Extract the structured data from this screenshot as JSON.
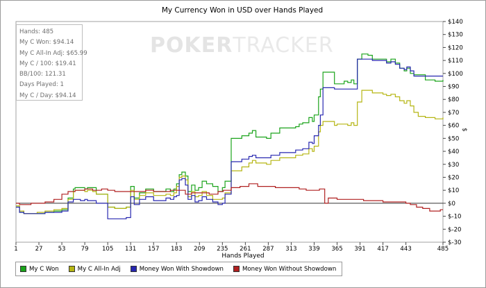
{
  "chart_data": {
    "type": "line",
    "title": "My Currency Won in USD over Hands Played",
    "xlabel": "Hands Played",
    "ylabel": "$",
    "xlim": [
      1,
      485
    ],
    "ylim": [
      -30,
      140
    ],
    "x_ticks": [
      "1",
      "27",
      "53",
      "79",
      "105",
      "131",
      "157",
      "183",
      "209",
      "235",
      "261",
      "287",
      "313",
      "339",
      "365",
      "391",
      "417",
      "443",
      "485"
    ],
    "y_ticks": [
      {
        "value": -30,
        "label": "$-30"
      },
      {
        "value": -20,
        "label": "$-20"
      },
      {
        "value": -10,
        "label": "$-10"
      },
      {
        "value": 0,
        "label": "$0"
      },
      {
        "value": 10,
        "label": "$10"
      },
      {
        "value": 20,
        "label": "$20"
      },
      {
        "value": 30,
        "label": "$30"
      },
      {
        "value": 40,
        "label": "$40"
      },
      {
        "value": 50,
        "label": "$50"
      },
      {
        "value": 60,
        "label": "$60"
      },
      {
        "value": 70,
        "label": "$70"
      },
      {
        "value": 80,
        "label": "$80"
      },
      {
        "value": 90,
        "label": "$90"
      },
      {
        "value": 100,
        "label": "$100"
      },
      {
        "value": 110,
        "label": "$110"
      },
      {
        "value": 120,
        "label": "$120"
      },
      {
        "value": 130,
        "label": "$130"
      },
      {
        "value": 140,
        "label": "$140"
      }
    ],
    "legend_position": "bottom",
    "series": [
      {
        "name": "My C Won",
        "color": "#1aa31a",
        "x": [
          1,
          5,
          10,
          18,
          25,
          34,
          44,
          53,
          55,
          60,
          66,
          68,
          74,
          79,
          82,
          88,
          92,
          98,
          105,
          110,
          113,
          120,
          126,
          131,
          135,
          141,
          148,
          157,
          165,
          171,
          176,
          180,
          183,
          186,
          189,
          193,
          196,
          200,
          204,
          208,
          212,
          217,
          224,
          230,
          235,
          238,
          245,
          252,
          257,
          262,
          265,
          269,
          273,
          280,
          285,
          290,
          295,
          300,
          305,
          313,
          318,
          322,
          326,
          330,
          333,
          337,
          339,
          342,
          344,
          346,
          349,
          353,
          358,
          362,
          365,
          369,
          373,
          377,
          381,
          384,
          388,
          393,
          400,
          405,
          411,
          417,
          421,
          426,
          431,
          436,
          441,
          444,
          448,
          452,
          457,
          461,
          465,
          470,
          476,
          482,
          485
        ],
        "y": [
          -2,
          -7,
          -8,
          -8,
          -8,
          -7,
          -6,
          -5,
          -5,
          4,
          11,
          12,
          12,
          11,
          12,
          12,
          7,
          7,
          -3,
          -3,
          -4,
          -4,
          -3,
          13,
          4,
          8,
          11,
          9,
          9,
          11,
          9,
          11,
          15,
          22,
          24,
          21,
          9,
          14,
          10,
          12,
          17,
          15,
          13,
          9,
          12,
          17,
          50,
          50,
          52,
          52,
          54,
          56,
          51,
          51,
          50,
          54,
          54,
          58,
          58,
          58,
          59,
          61,
          62,
          62,
          66,
          63,
          68,
          68,
          82,
          88,
          101,
          101,
          101,
          92,
          92,
          92,
          94,
          93,
          95,
          92,
          111,
          115,
          114,
          111,
          111,
          111,
          109,
          111,
          108,
          104,
          102,
          104,
          100,
          99,
          99,
          99,
          95,
          95,
          94,
          94,
          95
        ]
      },
      {
        "name": "My C All-In Adj",
        "color": "#b5b512",
        "x": [
          1,
          5,
          10,
          18,
          25,
          34,
          44,
          53,
          55,
          60,
          66,
          68,
          74,
          79,
          82,
          88,
          92,
          98,
          105,
          110,
          113,
          120,
          126,
          131,
          135,
          141,
          148,
          157,
          165,
          171,
          176,
          180,
          183,
          186,
          189,
          193,
          196,
          200,
          204,
          208,
          212,
          217,
          224,
          230,
          235,
          238,
          245,
          252,
          257,
          262,
          265,
          269,
          273,
          280,
          285,
          290,
          295,
          300,
          305,
          313,
          318,
          322,
          326,
          330,
          333,
          337,
          339,
          342,
          344,
          346,
          349,
          353,
          358,
          362,
          365,
          369,
          373,
          377,
          381,
          384,
          388,
          393,
          400,
          405,
          411,
          417,
          421,
          426,
          431,
          436,
          441,
          444,
          448,
          452,
          457,
          461,
          465,
          470,
          476,
          482,
          485
        ],
        "y": [
          -2,
          -6,
          -8,
          -8,
          -7,
          -6,
          -5,
          -4,
          -4,
          3,
          9,
          10,
          10,
          9,
          10,
          9,
          7,
          7,
          -3,
          -3,
          -4,
          -4,
          -3,
          10,
          3,
          6,
          8,
          6,
          6,
          7,
          6,
          8,
          13,
          20,
          21,
          18,
          5,
          9,
          5,
          6,
          9,
          6,
          3,
          3,
          4,
          8,
          25,
          25,
          28,
          28,
          31,
          33,
          31,
          31,
          30,
          33,
          33,
          35,
          35,
          35,
          37,
          37,
          38,
          38,
          42,
          40,
          44,
          44,
          55,
          60,
          63,
          63,
          63,
          60,
          61,
          61,
          61,
          60,
          62,
          60,
          78,
          87,
          87,
          85,
          85,
          84,
          83,
          84,
          82,
          79,
          77,
          79,
          75,
          70,
          67,
          67,
          66,
          66,
          65,
          65,
          66
        ]
      },
      {
        "name": "Money Won With Showdown",
        "color": "#2727b0",
        "x": [
          1,
          5,
          10,
          18,
          25,
          34,
          44,
          53,
          55,
          60,
          66,
          68,
          74,
          79,
          82,
          88,
          92,
          98,
          105,
          110,
          113,
          120,
          126,
          131,
          135,
          141,
          148,
          157,
          165,
          171,
          176,
          180,
          183,
          186,
          189,
          193,
          196,
          200,
          204,
          208,
          212,
          217,
          224,
          230,
          235,
          238,
          245,
          252,
          257,
          262,
          265,
          269,
          273,
          280,
          285,
          290,
          295,
          300,
          305,
          313,
          318,
          322,
          326,
          330,
          333,
          337,
          339,
          342,
          344,
          346,
          349,
          353,
          358,
          362,
          365,
          369,
          373,
          377,
          381,
          384,
          388,
          393,
          400,
          405,
          411,
          417,
          421,
          426,
          431,
          436,
          441,
          444,
          448,
          452,
          457,
          461,
          465,
          470,
          476,
          482,
          485
        ],
        "y": [
          -3,
          -7,
          -8,
          -8,
          -8,
          -7,
          -7,
          -6,
          -6,
          1,
          3,
          3,
          2,
          3,
          2,
          2,
          0,
          0,
          -12,
          -12,
          -12,
          -12,
          -11,
          5,
          -1,
          3,
          5,
          2,
          2,
          4,
          3,
          5,
          6,
          18,
          19,
          14,
          3,
          6,
          1,
          2,
          5,
          3,
          1,
          -1,
          0,
          7,
          32,
          32,
          34,
          34,
          36,
          37,
          35,
          35,
          35,
          37,
          37,
          39,
          39,
          39,
          41,
          41,
          42,
          42,
          47,
          46,
          52,
          52,
          60,
          68,
          89,
          89,
          89,
          88,
          88,
          88,
          88,
          88,
          88,
          88,
          111,
          111,
          111,
          110,
          110,
          110,
          108,
          109,
          107,
          104,
          103,
          105,
          102,
          98,
          98,
          98,
          98,
          98,
          98,
          98,
          98
        ]
      },
      {
        "name": "Money Won Without Showdown",
        "color": "#b02020",
        "x": [
          1,
          5,
          10,
          18,
          25,
          34,
          44,
          53,
          60,
          68,
          79,
          88,
          98,
          105,
          113,
          120,
          131,
          141,
          148,
          157,
          165,
          176,
          183,
          193,
          200,
          210,
          220,
          230,
          236,
          245,
          255,
          265,
          275,
          285,
          295,
          305,
          313,
          322,
          330,
          339,
          345,
          349,
          351,
          355,
          365,
          375,
          385,
          395,
          405,
          417,
          430,
          443,
          448,
          455,
          462,
          470,
          476,
          482,
          485
        ],
        "y": [
          0,
          -1,
          -1,
          0,
          0,
          1,
          3,
          7,
          9,
          10,
          11,
          10,
          11,
          10,
          9,
          9,
          9,
          9,
          10,
          9,
          9,
          10,
          10,
          7,
          8,
          8,
          7,
          9,
          10,
          12,
          13,
          15,
          13,
          13,
          12,
          12,
          12,
          11,
          10,
          10,
          11,
          11,
          0,
          4,
          3,
          3,
          3,
          2,
          2,
          1,
          1,
          0,
          -1,
          -3,
          -4,
          -6,
          -6,
          -5,
          -5
        ]
      }
    ]
  },
  "stats": [
    "Hands: 485",
    "My C Won: $94.14",
    "My C All-In Adj: $65.99",
    "My C / 100: $19.41",
    "BB/100: 121.31",
    "Days Played: 1",
    "My C / Day: $94.14"
  ],
  "watermark": {
    "part1": "POKER",
    "part2": "TRACKER"
  }
}
